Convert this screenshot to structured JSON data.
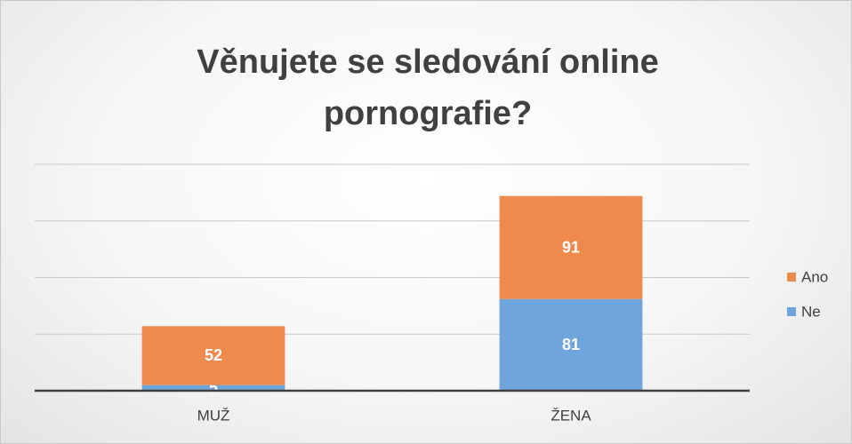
{
  "chart_data": {
    "type": "stacked_bar",
    "title": "Věnujete se sledování online pornografie?",
    "categories": [
      "MUŽ",
      "ŽENA"
    ],
    "series": [
      {
        "name": "Ne",
        "color": "#6fa5db",
        "values": [
          5,
          81
        ]
      },
      {
        "name": "Ano",
        "color": "#ee8b4c",
        "values": [
          52,
          91
        ]
      }
    ],
    "ylim": [
      0,
      200
    ],
    "yticks": [
      0,
      50,
      100,
      150,
      200
    ],
    "grid": true,
    "legend": "right"
  }
}
